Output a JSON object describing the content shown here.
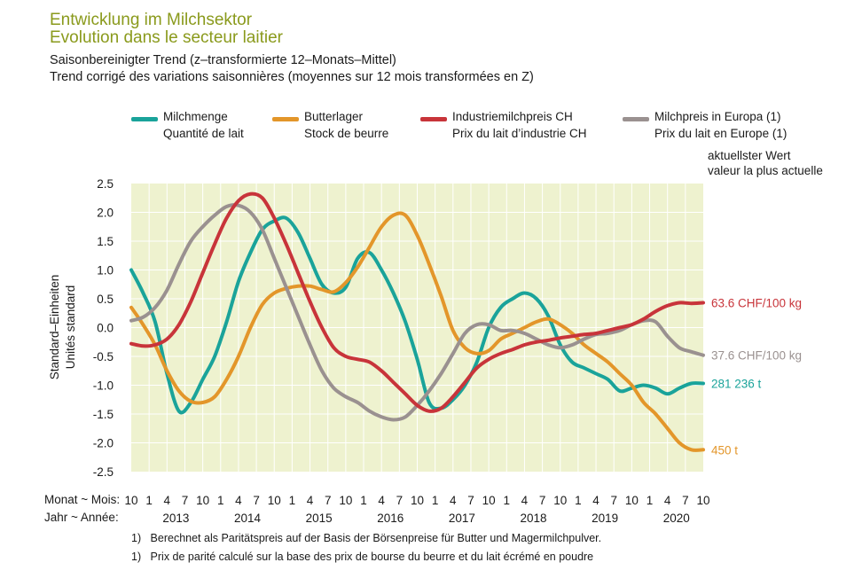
{
  "header": {
    "title_de": "Entwicklung im Milchsektor",
    "title_fr": "Evolution dans le secteur laitier",
    "subtitle_de": "Saisonbereinigter Trend (z–transformierte 12–Monats–Mittel)",
    "subtitle_fr": "Trend corrigé des variations saisonnières (moyennes sur 12 mois transformées en Z)"
  },
  "latest_header": {
    "de": "aktuellster Wert",
    "fr": "valeur la plus actuelle"
  },
  "axis_row_labels": {
    "month": "Monat ~ Mois:",
    "year": "Jahr ~ Année:"
  },
  "footnotes": {
    "de": "Berechnet als Paritätspreis auf der Basis der Börsenpreise für Butter und Magermilchpulver.",
    "fr": "Prix de parité calculé sur la base des prix de bourse du beurre et du lait écrémé en poudre",
    "marker": "1)"
  },
  "colors": {
    "plot_bg": "#eef2cf",
    "grid": "#ffffff",
    "title": "#8a9a1c",
    "milk": "#1aa39a",
    "butter": "#e3962a",
    "industry": "#c8343a",
    "europe": "#9a9190"
  },
  "chart_data": {
    "type": "line",
    "ylabel_de": "Standard–Einheiten",
    "ylabel_fr": "Unités standard",
    "ylim": [
      -2.5,
      2.5
    ],
    "yticks": [
      "2.5",
      "2.0",
      "1.5",
      "1.0",
      "0.5",
      "0.0",
      "-0.5",
      "-1.0",
      "-1.5",
      "-2.0",
      "-2.5"
    ],
    "x_start": "2012-10",
    "x_end": "2020-10",
    "month_ticks": [
      "10",
      "1",
      "4",
      "7",
      "10",
      "1",
      "4",
      "7",
      "10",
      "1",
      "4",
      "7",
      "10",
      "1",
      "4",
      "7",
      "10",
      "1",
      "4",
      "7",
      "10",
      "1",
      "4",
      "7",
      "10",
      "1",
      "4",
      "7",
      "10",
      "1",
      "4",
      "7",
      "10"
    ],
    "year_labels": [
      "2013",
      "2014",
      "2015",
      "2016",
      "2017",
      "2018",
      "2019",
      "2020"
    ],
    "grid": true,
    "series": [
      {
        "key": "milk",
        "name_de": "Milchmenge",
        "name_fr": "Quantité de lait",
        "latest_label": "281 236 t",
        "points": [
          [
            "2012-10",
            1.0
          ],
          [
            "2012-12",
            0.6
          ],
          [
            "2013-02",
            0.1
          ],
          [
            "2013-04",
            -0.8
          ],
          [
            "2013-06",
            -1.45
          ],
          [
            "2013-08",
            -1.3
          ],
          [
            "2013-10",
            -0.9
          ],
          [
            "2013-12",
            -0.5
          ],
          [
            "2014-02",
            0.1
          ],
          [
            "2014-04",
            0.8
          ],
          [
            "2014-06",
            1.3
          ],
          [
            "2014-08",
            1.7
          ],
          [
            "2014-10",
            1.85
          ],
          [
            "2014-12",
            1.9
          ],
          [
            "2015-02",
            1.65
          ],
          [
            "2015-04",
            1.2
          ],
          [
            "2015-06",
            0.75
          ],
          [
            "2015-08",
            0.6
          ],
          [
            "2015-10",
            0.7
          ],
          [
            "2015-12",
            1.2
          ],
          [
            "2016-02",
            1.3
          ],
          [
            "2016-04",
            1.0
          ],
          [
            "2016-06",
            0.6
          ],
          [
            "2016-08",
            0.1
          ],
          [
            "2016-10",
            -0.55
          ],
          [
            "2016-12",
            -1.3
          ],
          [
            "2017-02",
            -1.4
          ],
          [
            "2017-04",
            -1.25
          ],
          [
            "2017-06",
            -1.0
          ],
          [
            "2017-08",
            -0.6
          ],
          [
            "2017-10",
            0.0
          ],
          [
            "2017-12",
            0.35
          ],
          [
            "2018-02",
            0.5
          ],
          [
            "2018-04",
            0.6
          ],
          [
            "2018-06",
            0.5
          ],
          [
            "2018-08",
            0.2
          ],
          [
            "2018-10",
            -0.3
          ],
          [
            "2018-12",
            -0.6
          ],
          [
            "2019-02",
            -0.7
          ],
          [
            "2019-04",
            -0.8
          ],
          [
            "2019-06",
            -0.9
          ],
          [
            "2019-08",
            -1.1
          ],
          [
            "2019-10",
            -1.05
          ],
          [
            "2019-12",
            -1.0
          ],
          [
            "2020-02",
            -1.05
          ],
          [
            "2020-04",
            -1.15
          ],
          [
            "2020-06",
            -1.05
          ],
          [
            "2020-08",
            -0.97
          ],
          [
            "2020-10",
            -0.97
          ]
        ]
      },
      {
        "key": "butter",
        "name_de": "Butterlager",
        "name_fr": "Stock de beurre",
        "latest_label": "450 t",
        "points": [
          [
            "2012-10",
            0.35
          ],
          [
            "2012-12",
            0.05
          ],
          [
            "2013-02",
            -0.3
          ],
          [
            "2013-04",
            -0.75
          ],
          [
            "2013-06",
            -1.1
          ],
          [
            "2013-08",
            -1.28
          ],
          [
            "2013-10",
            -1.3
          ],
          [
            "2013-12",
            -1.2
          ],
          [
            "2014-02",
            -0.9
          ],
          [
            "2014-04",
            -0.5
          ],
          [
            "2014-06",
            0.0
          ],
          [
            "2014-08",
            0.4
          ],
          [
            "2014-10",
            0.6
          ],
          [
            "2014-12",
            0.68
          ],
          [
            "2015-02",
            0.72
          ],
          [
            "2015-04",
            0.72
          ],
          [
            "2015-06",
            0.66
          ],
          [
            "2015-08",
            0.62
          ],
          [
            "2015-10",
            0.78
          ],
          [
            "2015-12",
            1.05
          ],
          [
            "2016-02",
            1.4
          ],
          [
            "2016-04",
            1.75
          ],
          [
            "2016-06",
            1.95
          ],
          [
            "2016-08",
            1.95
          ],
          [
            "2016-10",
            1.6
          ],
          [
            "2016-12",
            1.1
          ],
          [
            "2017-02",
            0.55
          ],
          [
            "2017-04",
            -0.05
          ],
          [
            "2017-06",
            -0.35
          ],
          [
            "2017-08",
            -0.45
          ],
          [
            "2017-10",
            -0.4
          ],
          [
            "2017-12",
            -0.2
          ],
          [
            "2018-02",
            -0.1
          ],
          [
            "2018-04",
            0.0
          ],
          [
            "2018-06",
            0.1
          ],
          [
            "2018-08",
            0.15
          ],
          [
            "2018-10",
            0.05
          ],
          [
            "2018-12",
            -0.1
          ],
          [
            "2019-02",
            -0.3
          ],
          [
            "2019-04",
            -0.45
          ],
          [
            "2019-06",
            -0.6
          ],
          [
            "2019-08",
            -0.8
          ],
          [
            "2019-10",
            -1.0
          ],
          [
            "2019-12",
            -1.3
          ],
          [
            "2020-02",
            -1.5
          ],
          [
            "2020-04",
            -1.75
          ],
          [
            "2020-06",
            -2.0
          ],
          [
            "2020-08",
            -2.12
          ],
          [
            "2020-10",
            -2.12
          ]
        ]
      },
      {
        "key": "industry",
        "name_de": "Industriemilchpreis CH",
        "name_fr": "Prix du lait d’industrie CH",
        "latest_label": "63.6 CHF/100 kg",
        "points": [
          [
            "2012-10",
            -0.28
          ],
          [
            "2012-12",
            -0.32
          ],
          [
            "2013-02",
            -0.3
          ],
          [
            "2013-04",
            -0.2
          ],
          [
            "2013-06",
            0.05
          ],
          [
            "2013-08",
            0.45
          ],
          [
            "2013-10",
            0.95
          ],
          [
            "2013-12",
            1.45
          ],
          [
            "2014-02",
            1.9
          ],
          [
            "2014-04",
            2.2
          ],
          [
            "2014-06",
            2.32
          ],
          [
            "2014-08",
            2.25
          ],
          [
            "2014-10",
            1.9
          ],
          [
            "2014-12",
            1.45
          ],
          [
            "2015-02",
            0.95
          ],
          [
            "2015-04",
            0.45
          ],
          [
            "2015-06",
            0.0
          ],
          [
            "2015-08",
            -0.35
          ],
          [
            "2015-10",
            -0.5
          ],
          [
            "2015-12",
            -0.55
          ],
          [
            "2016-02",
            -0.6
          ],
          [
            "2016-04",
            -0.75
          ],
          [
            "2016-06",
            -0.95
          ],
          [
            "2016-08",
            -1.15
          ],
          [
            "2016-10",
            -1.35
          ],
          [
            "2016-12",
            -1.45
          ],
          [
            "2017-02",
            -1.4
          ],
          [
            "2017-04",
            -1.2
          ],
          [
            "2017-06",
            -0.95
          ],
          [
            "2017-08",
            -0.7
          ],
          [
            "2017-10",
            -0.55
          ],
          [
            "2017-12",
            -0.45
          ],
          [
            "2018-02",
            -0.38
          ],
          [
            "2018-04",
            -0.3
          ],
          [
            "2018-06",
            -0.25
          ],
          [
            "2018-08",
            -0.22
          ],
          [
            "2018-10",
            -0.18
          ],
          [
            "2018-12",
            -0.15
          ],
          [
            "2019-02",
            -0.12
          ],
          [
            "2019-04",
            -0.1
          ],
          [
            "2019-06",
            -0.05
          ],
          [
            "2019-08",
            0.0
          ],
          [
            "2019-10",
            0.05
          ],
          [
            "2019-12",
            0.15
          ],
          [
            "2020-02",
            0.28
          ],
          [
            "2020-04",
            0.38
          ],
          [
            "2020-06",
            0.43
          ],
          [
            "2020-08",
            0.42
          ],
          [
            "2020-10",
            0.43
          ]
        ]
      },
      {
        "key": "europe",
        "name_de": "Milchpreis in Europa (1)",
        "name_fr": "Prix du lait en Europe (1)",
        "latest_label": "37.6 CHF/100 kg",
        "points": [
          [
            "2012-10",
            0.12
          ],
          [
            "2012-12",
            0.18
          ],
          [
            "2013-02",
            0.35
          ],
          [
            "2013-04",
            0.65
          ],
          [
            "2013-06",
            1.1
          ],
          [
            "2013-08",
            1.5
          ],
          [
            "2013-10",
            1.75
          ],
          [
            "2013-12",
            1.95
          ],
          [
            "2014-02",
            2.1
          ],
          [
            "2014-04",
            2.12
          ],
          [
            "2014-06",
            2.0
          ],
          [
            "2014-08",
            1.7
          ],
          [
            "2014-10",
            1.2
          ],
          [
            "2014-12",
            0.7
          ],
          [
            "2015-02",
            0.2
          ],
          [
            "2015-04",
            -0.3
          ],
          [
            "2015-06",
            -0.75
          ],
          [
            "2015-08",
            -1.05
          ],
          [
            "2015-10",
            -1.2
          ],
          [
            "2015-12",
            -1.3
          ],
          [
            "2016-02",
            -1.45
          ],
          [
            "2016-04",
            -1.55
          ],
          [
            "2016-06",
            -1.6
          ],
          [
            "2016-08",
            -1.55
          ],
          [
            "2016-10",
            -1.35
          ],
          [
            "2016-12",
            -1.1
          ],
          [
            "2017-02",
            -0.8
          ],
          [
            "2017-04",
            -0.45
          ],
          [
            "2017-06",
            -0.1
          ],
          [
            "2017-08",
            0.05
          ],
          [
            "2017-10",
            0.05
          ],
          [
            "2017-12",
            -0.05
          ],
          [
            "2018-02",
            -0.05
          ],
          [
            "2018-04",
            -0.1
          ],
          [
            "2018-06",
            -0.2
          ],
          [
            "2018-08",
            -0.3
          ],
          [
            "2018-10",
            -0.35
          ],
          [
            "2018-12",
            -0.3
          ],
          [
            "2019-02",
            -0.2
          ],
          [
            "2019-04",
            -0.12
          ],
          [
            "2019-06",
            -0.1
          ],
          [
            "2019-08",
            -0.05
          ],
          [
            "2019-10",
            0.05
          ],
          [
            "2019-12",
            0.12
          ],
          [
            "2020-02",
            0.1
          ],
          [
            "2020-04",
            -0.15
          ],
          [
            "2020-06",
            -0.35
          ],
          [
            "2020-08",
            -0.42
          ],
          [
            "2020-10",
            -0.48
          ]
        ]
      }
    ]
  }
}
